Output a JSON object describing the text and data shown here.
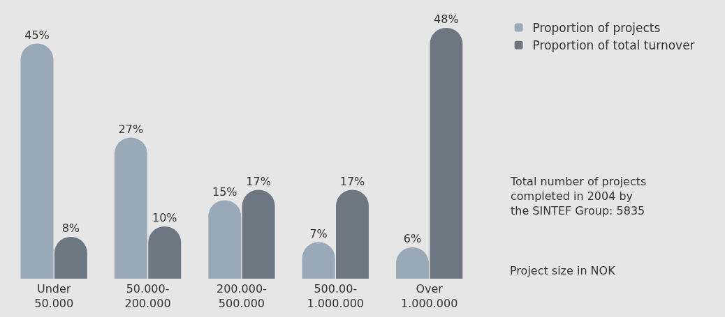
{
  "chart_data": {
    "type": "bar",
    "categories": [
      "Under\n50.000",
      "50.000-\n200.000",
      "200.000-\n500.000",
      "500.00-\n1.000.000",
      "Over\n1.000.000"
    ],
    "series": [
      {
        "name": "Proportion of projects",
        "color": "#9aa9b7",
        "values": [
          45,
          27,
          15,
          7,
          6
        ],
        "value_labels": [
          "45%",
          "27%",
          "15%",
          "7%",
          "6%"
        ]
      },
      {
        "name": "Proportion of total turnover",
        "color": "#6c7782",
        "values": [
          8,
          10,
          17,
          17,
          48
        ],
        "value_labels": [
          "8%",
          "10%",
          "17%",
          "17%",
          "48%"
        ]
      }
    ],
    "legend": "top right",
    "grid": false,
    "annotations": [
      "Total number of projects\ncompleted in 2004 by\nthe SINTEF Group: 5835",
      "Project size in NOK"
    ]
  }
}
